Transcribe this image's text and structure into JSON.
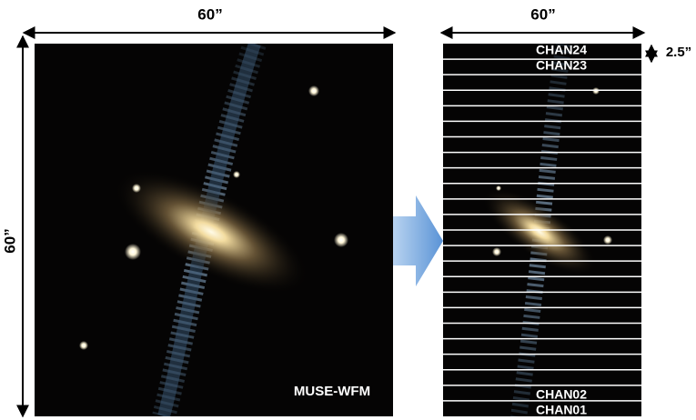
{
  "left_panel": {
    "width_label": "60”",
    "height_label": "60”",
    "caption": "MUSE-WFM"
  },
  "right_panel": {
    "width_label": "60”",
    "slice_label": "2.5”",
    "channels": [
      "CHAN24",
      "CHAN23",
      "CHAN02",
      "CHAN01"
    ]
  }
}
